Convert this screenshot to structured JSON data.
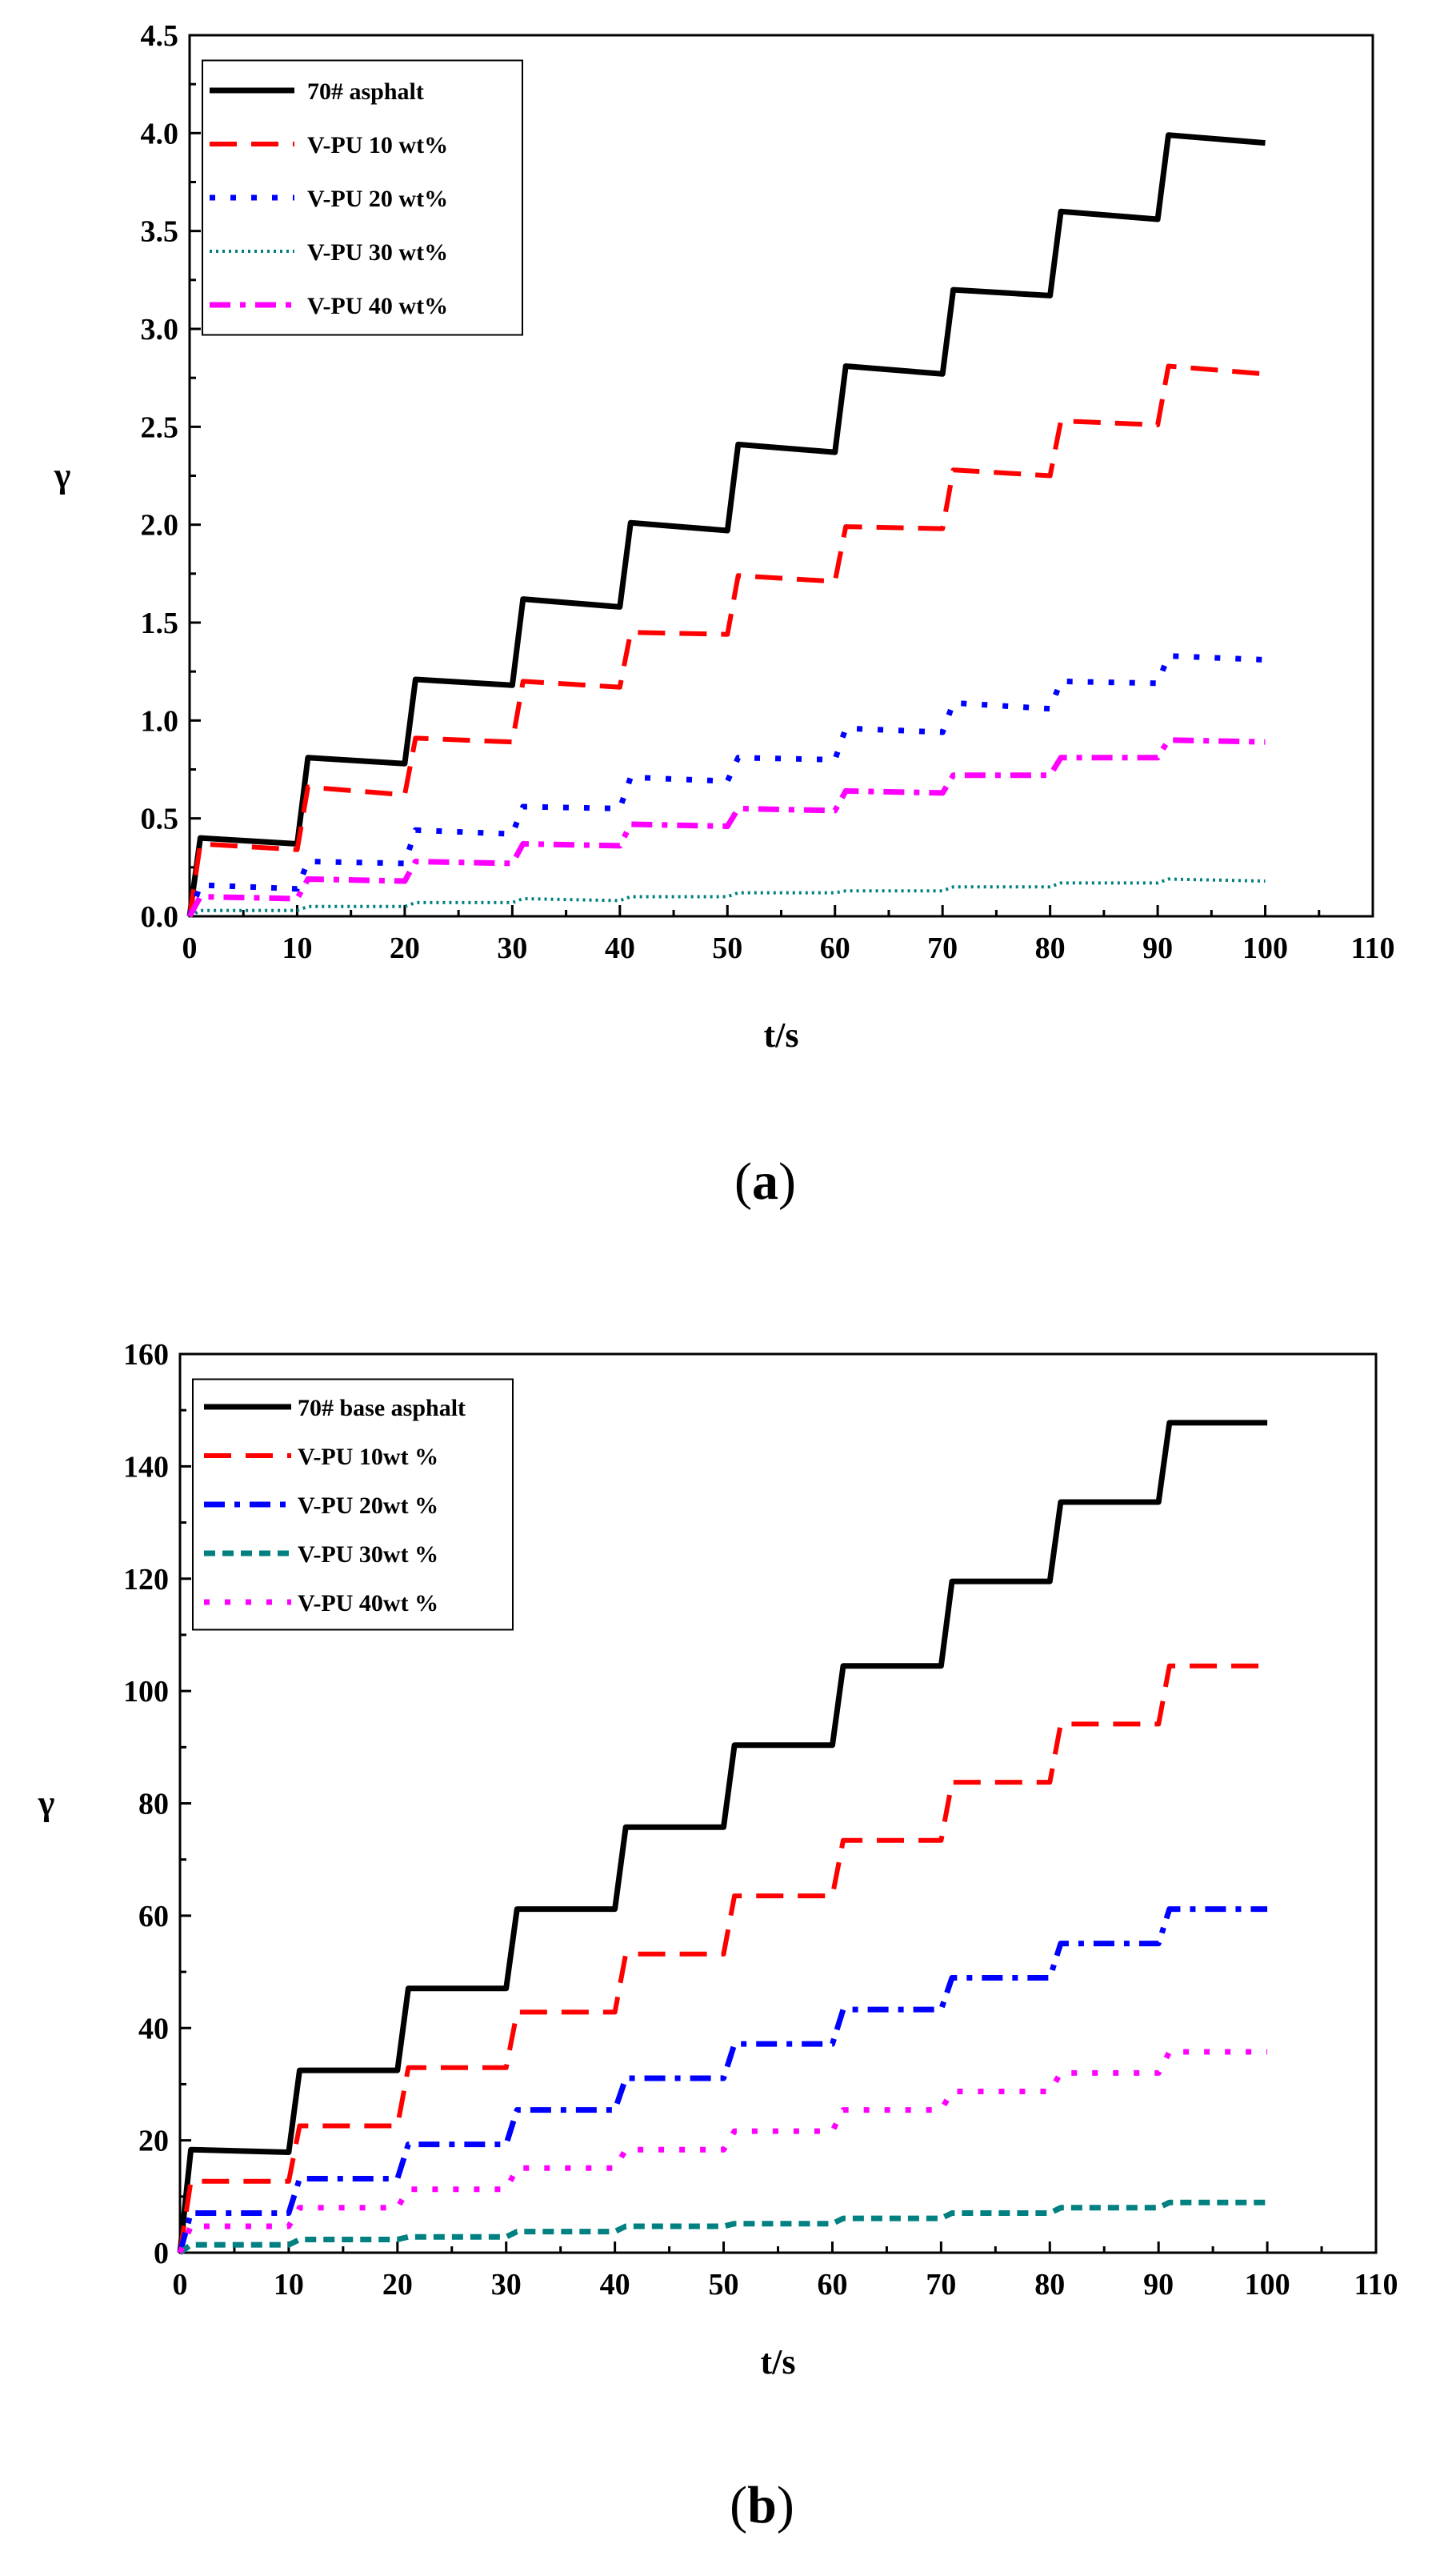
{
  "chart_data": [
    {
      "type": "line",
      "panel_label": "a",
      "xlabel": "t/s",
      "ylabel": "γ",
      "xlim": [
        0,
        110
      ],
      "ylim": [
        0,
        4.5
      ],
      "xticks": [
        "0",
        "10",
        "20",
        "30",
        "40",
        "50",
        "60",
        "70",
        "80",
        "90",
        "100",
        "110"
      ],
      "yticks": [
        "0.0",
        "0.5",
        "1.0",
        "1.5",
        "2.0",
        "2.5",
        "3.0",
        "3.5",
        "4.0",
        "4.5"
      ],
      "legend_position": "top-left",
      "series": [
        {
          "name": "70# asphalt",
          "color": "#000000",
          "style": "solid",
          "x": [
            0,
            1,
            10,
            11,
            20,
            21,
            30,
            31,
            40,
            41,
            50,
            51,
            60,
            61,
            70,
            71,
            80,
            81,
            90,
            91,
            100
          ],
          "y": [
            0,
            0.4,
            0.37,
            0.81,
            0.78,
            1.21,
            1.18,
            1.62,
            1.58,
            2.01,
            1.97,
            2.41,
            2.37,
            2.81,
            2.77,
            3.2,
            3.17,
            3.6,
            3.56,
            3.99,
            3.95
          ]
        },
        {
          "name": "V-PU 10 wt%",
          "color": "#ff0000",
          "style": "dash",
          "x": [
            0,
            1,
            10,
            11,
            20,
            21,
            30,
            31,
            40,
            41,
            50,
            51,
            60,
            61,
            70,
            71,
            80,
            81,
            90,
            91,
            100
          ],
          "y": [
            0,
            0.37,
            0.34,
            0.66,
            0.62,
            0.91,
            0.89,
            1.2,
            1.17,
            1.45,
            1.44,
            1.74,
            1.71,
            1.99,
            1.98,
            2.28,
            2.25,
            2.53,
            2.51,
            2.81,
            2.77
          ]
        },
        {
          "name": "V-PU 20 wt%",
          "color": "#0000ff",
          "style": "dot",
          "x": [
            0,
            1,
            10,
            11,
            20,
            21,
            30,
            31,
            40,
            41,
            50,
            51,
            60,
            61,
            70,
            71,
            80,
            81,
            90,
            91,
            100
          ],
          "y": [
            0,
            0.16,
            0.14,
            0.28,
            0.27,
            0.44,
            0.42,
            0.56,
            0.55,
            0.71,
            0.69,
            0.81,
            0.8,
            0.96,
            0.94,
            1.09,
            1.06,
            1.2,
            1.19,
            1.33,
            1.31
          ]
        },
        {
          "name": "V-PU 30 wt%",
          "color": "#008080",
          "style": "finedot",
          "x": [
            0,
            1,
            10,
            11,
            20,
            21,
            30,
            31,
            40,
            41,
            50,
            51,
            60,
            61,
            70,
            71,
            80,
            81,
            90,
            91,
            100
          ],
          "y": [
            0,
            0.03,
            0.03,
            0.05,
            0.05,
            0.07,
            0.07,
            0.09,
            0.08,
            0.1,
            0.1,
            0.12,
            0.12,
            0.13,
            0.13,
            0.15,
            0.15,
            0.17,
            0.17,
            0.19,
            0.18
          ]
        },
        {
          "name": "V-PU 40 wt%",
          "color": "#ff00ff",
          "style": "dashdot",
          "x": [
            0,
            1,
            10,
            11,
            20,
            21,
            30,
            31,
            40,
            41,
            50,
            51,
            60,
            61,
            70,
            71,
            80,
            81,
            90,
            91,
            100
          ],
          "y": [
            0,
            0.1,
            0.09,
            0.19,
            0.18,
            0.28,
            0.27,
            0.37,
            0.36,
            0.47,
            0.46,
            0.55,
            0.54,
            0.64,
            0.63,
            0.72,
            0.72,
            0.81,
            0.81,
            0.9,
            0.89
          ]
        }
      ]
    },
    {
      "type": "line",
      "panel_label": "b",
      "xlabel": "t/s",
      "ylabel": "γ",
      "xlim": [
        0,
        110
      ],
      "ylim": [
        0,
        170
      ],
      "xticks": [
        "0",
        "10",
        "20",
        "30",
        "40",
        "50",
        "60",
        "70",
        "80",
        "90",
        "100",
        "110"
      ],
      "yticks": [
        "0",
        "20",
        "40",
        "60",
        "80",
        "100",
        "120",
        "140",
        "160"
      ],
      "legend_position": "top-left",
      "series": [
        {
          "name": "70# base asphalt",
          "color": "#000000",
          "style": "solid",
          "x": [
            0,
            1,
            10,
            11,
            20,
            21,
            30,
            31,
            40,
            41,
            50,
            51,
            60,
            61,
            70,
            71,
            80,
            81,
            90,
            91,
            100
          ],
          "y": [
            0,
            19.5,
            19,
            34.5,
            34.5,
            50,
            50,
            65,
            65,
            80.5,
            80.5,
            96,
            96,
            111,
            111,
            127,
            127,
            142,
            142,
            157,
            157
          ]
        },
        {
          "name": "V-PU 10wt %",
          "color": "#ff0000",
          "style": "dash",
          "x": [
            0,
            1,
            10,
            11,
            20,
            21,
            30,
            31,
            40,
            41,
            50,
            51,
            60,
            61,
            70,
            71,
            80,
            81,
            90,
            91,
            100
          ],
          "y": [
            0,
            13.5,
            13.5,
            24,
            24,
            35,
            35,
            45.5,
            45.5,
            56.5,
            56.5,
            67.5,
            67.5,
            78,
            78,
            89,
            89,
            100,
            100,
            111,
            111
          ]
        },
        {
          "name": "V-PU 20wt %",
          "color": "#0000ff",
          "style": "dashdot",
          "x": [
            0,
            1,
            10,
            11,
            20,
            21,
            30,
            31,
            40,
            41,
            50,
            51,
            60,
            61,
            70,
            71,
            80,
            81,
            90,
            91,
            100
          ],
          "y": [
            0,
            7.5,
            7.5,
            14,
            14,
            20.5,
            20.5,
            27,
            27,
            33,
            33,
            39.5,
            39.5,
            46,
            46,
            52,
            52,
            58.5,
            58.5,
            65,
            65
          ]
        },
        {
          "name": "V-PU 30wt %",
          "color": "#008080",
          "style": "shortdash",
          "x": [
            0,
            1,
            10,
            11,
            20,
            21,
            30,
            31,
            40,
            41,
            50,
            51,
            60,
            61,
            70,
            71,
            80,
            81,
            90,
            91,
            100
          ],
          "y": [
            0,
            1.5,
            1.5,
            2.5,
            2.5,
            3,
            3,
            4,
            4,
            5,
            5,
            5.5,
            5.5,
            6.5,
            6.5,
            7.5,
            7.5,
            8.5,
            8.5,
            9.5,
            9.5
          ]
        },
        {
          "name": "V-PU 40wt %",
          "color": "#ff00ff",
          "style": "dot",
          "x": [
            0,
            1,
            10,
            11,
            20,
            21,
            30,
            31,
            40,
            41,
            50,
            51,
            60,
            61,
            70,
            71,
            80,
            81,
            90,
            91,
            100
          ],
          "y": [
            0,
            5,
            5,
            8.5,
            8.5,
            12,
            12,
            16,
            16,
            19.5,
            19.5,
            23,
            23,
            27,
            27,
            30.5,
            30.5,
            34,
            34,
            38,
            38
          ]
        }
      ]
    }
  ]
}
